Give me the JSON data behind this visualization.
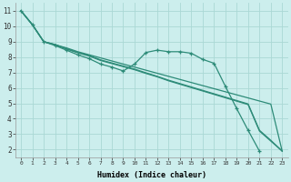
{
  "xlabel": "Humidex (Indice chaleur)",
  "bg_color": "#cceeed",
  "grid_color": "#aad8d5",
  "line_color": "#2d8b78",
  "xlim": [
    -0.5,
    23.5
  ],
  "ylim": [
    1.5,
    11.5
  ],
  "xticks": [
    0,
    1,
    2,
    3,
    4,
    5,
    6,
    7,
    8,
    9,
    10,
    11,
    12,
    13,
    14,
    15,
    16,
    17,
    18,
    19,
    20,
    21,
    22,
    23
  ],
  "yticks": [
    2,
    3,
    4,
    5,
    6,
    7,
    8,
    9,
    10,
    11
  ],
  "line1_x": [
    0,
    1,
    2,
    3,
    4,
    5,
    6,
    7,
    8,
    9,
    10,
    11,
    12,
    13,
    14,
    15,
    16,
    17,
    18,
    19,
    20,
    21,
    22,
    23
  ],
  "line1_y": [
    11.0,
    10.1,
    9.0,
    8.8,
    8.6,
    8.35,
    8.15,
    7.95,
    7.75,
    7.55,
    7.35,
    7.15,
    6.95,
    6.75,
    6.55,
    6.35,
    6.15,
    5.95,
    5.75,
    5.55,
    5.35,
    5.15,
    4.95,
    1.9
  ],
  "line2_x": [
    0,
    1,
    2,
    3,
    4,
    5,
    6,
    7,
    8,
    9,
    10,
    11,
    12,
    13,
    14,
    15,
    16,
    17,
    18,
    19,
    20,
    21
  ],
  "line2_y": [
    11.0,
    10.1,
    9.0,
    8.75,
    8.45,
    8.15,
    7.9,
    7.55,
    7.35,
    7.1,
    7.55,
    8.3,
    8.45,
    8.35,
    8.35,
    8.25,
    7.85,
    7.6,
    6.1,
    4.65,
    3.25,
    1.9
  ],
  "line3_x": [
    0,
    1,
    2,
    3,
    4,
    5,
    6,
    7,
    8,
    9,
    10,
    11,
    12,
    13,
    14,
    15,
    16,
    17,
    18,
    19,
    20,
    21,
    22,
    23
  ],
  "line3_y": [
    11.0,
    10.1,
    9.0,
    8.8,
    8.55,
    8.3,
    8.1,
    7.82,
    7.62,
    7.42,
    7.22,
    6.98,
    6.75,
    6.5,
    6.28,
    6.06,
    5.84,
    5.62,
    5.4,
    5.18,
    4.96,
    3.25,
    2.6,
    1.9
  ],
  "line4_x": [
    0,
    1,
    2,
    3,
    4,
    5,
    6,
    7,
    8,
    9,
    10,
    11,
    12,
    13,
    14,
    15,
    16,
    17,
    18,
    19,
    20,
    21,
    22,
    23
  ],
  "line4_y": [
    11.0,
    10.1,
    9.0,
    8.82,
    8.52,
    8.28,
    8.07,
    7.78,
    7.58,
    7.38,
    7.18,
    6.94,
    6.72,
    6.46,
    6.24,
    6.02,
    5.8,
    5.58,
    5.36,
    5.14,
    4.92,
    3.2,
    2.55,
    1.9
  ]
}
